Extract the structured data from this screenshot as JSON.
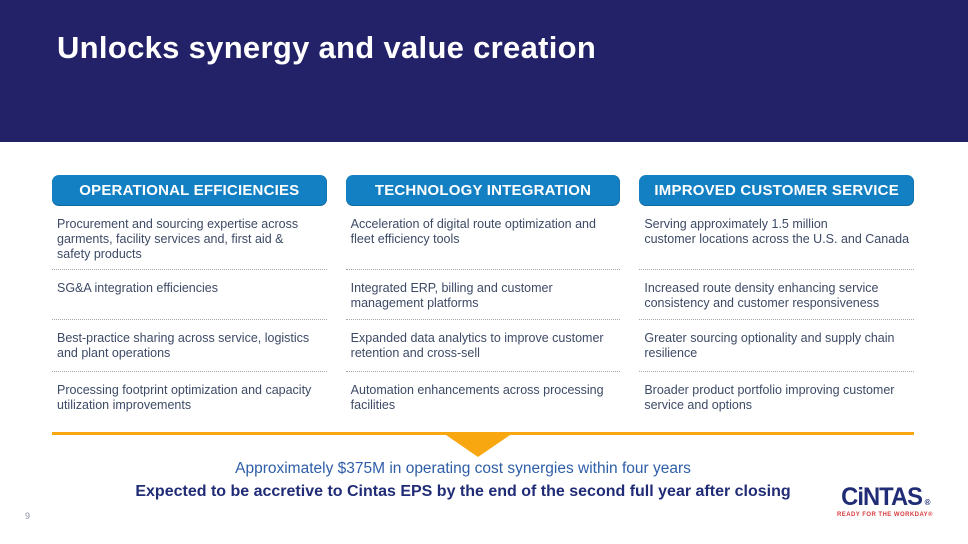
{
  "slide": {
    "title": "Unlocks synergy and value creation",
    "page_number": "9"
  },
  "columns": [
    {
      "header": "OPERATIONAL EFFICIENCIES",
      "items": [
        "Procurement and sourcing expertise across\ngarments, facility services and, first aid &\nsafety products",
        "SG&A integration efficiencies",
        "Best-practice sharing across service, logistics\nand plant operations",
        "Processing footprint optimization and capacity\nutilization improvements"
      ]
    },
    {
      "header": "TECHNOLOGY INTEGRATION",
      "items": [
        "Acceleration of digital route optimization and\nfleet efficiency tools",
        "Integrated ERP, billing and customer\nmanagement platforms",
        "Expanded data analytics to improve customer\nretention and cross-sell",
        "Automation enhancements across processing\nfacilities"
      ]
    },
    {
      "header": "IMPROVED CUSTOMER SERVICE",
      "items": [
        "Serving approximately 1.5 million\ncustomer locations across the U.S. and Canada",
        "Increased route density enhancing service\nconsistency and customer responsiveness",
        "Greater sourcing optionality and supply chain\nresilience",
        "Broader product portfolio improving customer\nservice and options"
      ]
    }
  ],
  "footer": {
    "line1": "Approximately $375M in operating cost synergies within four years",
    "line2": "Expected to be accretive to Cintas EPS by the end of the second full year after closing"
  },
  "logo": {
    "wordmark": "CiNTAS",
    "registered": "®",
    "tagline": "READY FOR THE WORKDAY®"
  },
  "colors": {
    "header_navy": "#232168",
    "button_blue": "#1480C4",
    "accent_yellow": "#F8A711",
    "body_text": "#3D4A66",
    "footer_blue": "#2E5EA8",
    "footer_navy": "#202C76",
    "tagline_red": "#D93A3E"
  }
}
